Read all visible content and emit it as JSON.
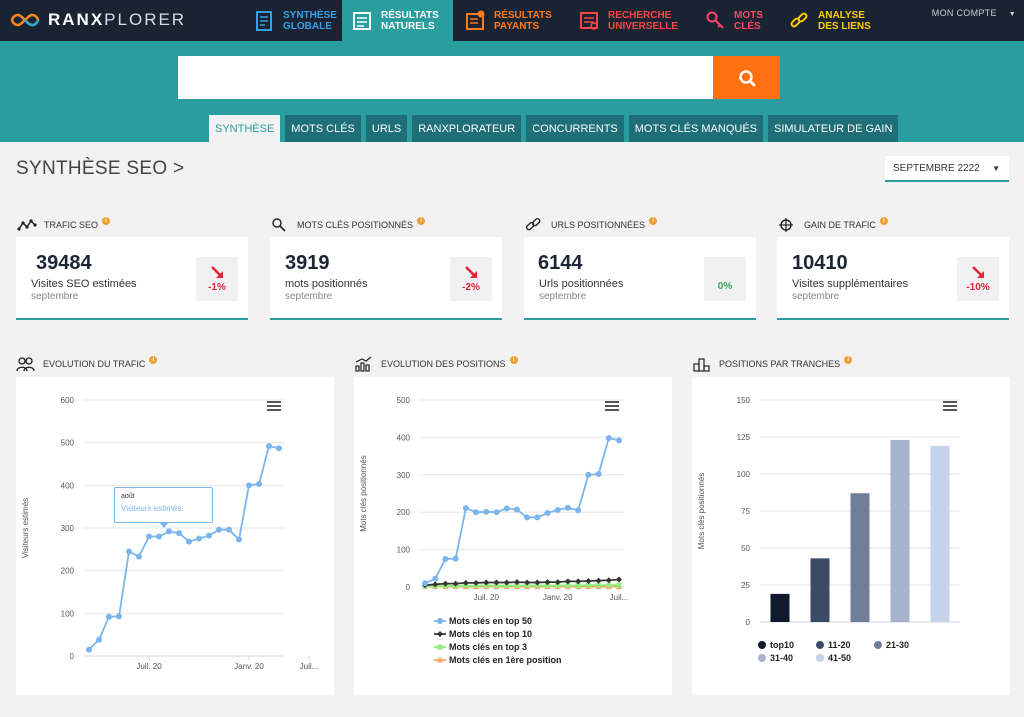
{
  "brand": {
    "name_bold": "RANX",
    "name_thin": "PLORER"
  },
  "nav": {
    "items": [
      {
        "label": "SYNTHÈSE\nGLOBALE",
        "color": "#35a0e8",
        "icon": "report-icon"
      },
      {
        "label": "RÉSULTATS\nNATURELS",
        "color": "#ffffff",
        "icon": "results-list-icon",
        "active": true
      },
      {
        "label": "RÉSULTATS\nPAYANTS",
        "color": "#ff7a1a",
        "icon": "paid-results-icon"
      },
      {
        "label": "RECHERCHE\nUNIVERSELLE",
        "color": "#ff4444",
        "icon": "universal-search-icon"
      },
      {
        "label": "MOTS\nCLÉS",
        "color": "#ff4466",
        "icon": "key-icon"
      },
      {
        "label": "ANALYSE\nDES LIENS",
        "color": "#ffcc00",
        "icon": "link-icon"
      }
    ],
    "account": "MON COMPTE"
  },
  "search": {
    "value": "",
    "placeholder": ""
  },
  "subtabs": [
    "SYNTHÈSE",
    "MOTS CLÉS",
    "URLS",
    "RANXPLORATEUR",
    "CONCURRENTS",
    "MOTS CLÉS MANQUÉS",
    "SIMULATEUR DE GAIN"
  ],
  "page": {
    "title": "SYNTHÈSE SEO >",
    "period": "SEPTEMBRE 2222"
  },
  "kpis": [
    {
      "label": "TRAFIC SEO",
      "value": "39484",
      "desc": "Visites SEO estimées",
      "sub": "septembre",
      "delta": "-1%",
      "trend": "down"
    },
    {
      "label": "MOTS CLÉS POSITIONNÉS",
      "value": "3919",
      "desc": "mots positionnés",
      "sub": "septembre",
      "delta": "-2%",
      "trend": "down"
    },
    {
      "label": "URLS POSITIONNÉES",
      "value": "6144",
      "desc": "Urls positionnées",
      "sub": "septembre",
      "delta": "0%",
      "trend": "flat"
    },
    {
      "label": "GAIN DE TRAFIC",
      "value": "10410",
      "desc": "Visites supplémentaires",
      "sub": "septembre",
      "delta": "-10%",
      "trend": "down"
    }
  ],
  "panels": {
    "traffic": {
      "label": "EVOLUTION DU TRAFIC"
    },
    "positions": {
      "label": "EVOLUTION DES POSITIONS"
    },
    "ranges": {
      "label": "POSITIONS PAR TRANCHES"
    }
  },
  "tooltip": {
    "title": "août",
    "series": "Visiteurs estimés:"
  },
  "colors": {
    "teal": "#2a9d9f",
    "navy": "#1a2332",
    "orange": "#ff7010",
    "series_blue": "#7cb5ec",
    "series_black": "#333333",
    "series_green": "#90ed7d",
    "series_orange": "#f7a35c"
  },
  "chart_data": [
    {
      "type": "line",
      "title": "",
      "xlabel": "",
      "ylabel": "Visiteurs estimés",
      "ylim": [
        0,
        600
      ],
      "yticks": [
        0,
        100,
        200,
        300,
        400,
        500,
        600
      ],
      "xticks": [
        "Juil. 20",
        "Janv. 20",
        "Juil..."
      ],
      "xtick_index": [
        6,
        16,
        22
      ],
      "series": [
        {
          "name": "Visiteurs estimés",
          "color": "#7cb5ec",
          "values": [
            15,
            38,
            92,
            93,
            245,
            233,
            280,
            280,
            292,
            288,
            268,
            275,
            282,
            296,
            296,
            273,
            400,
            403,
            492,
            487
          ]
        }
      ],
      "grid": true
    },
    {
      "type": "line",
      "title": "",
      "xlabel": "",
      "ylabel": "Mots clés positionnés",
      "ylim": [
        0,
        500
      ],
      "yticks": [
        0,
        100,
        200,
        300,
        400,
        500
      ],
      "xticks": [
        "Juil. 20",
        "Janv. 20",
        "Juil..."
      ],
      "xtick_index": [
        6,
        13,
        19
      ],
      "series": [
        {
          "name": "Mots clés en top 50",
          "color": "#7cb5ec",
          "marker": "circle",
          "values": [
            10,
            22,
            75,
            76,
            211,
            200,
            201,
            200,
            210,
            207,
            186,
            186,
            198,
            206,
            212,
            205,
            300,
            302,
            398,
            392
          ]
        },
        {
          "name": "Mots clés en top 10",
          "color": "#333333",
          "marker": "diamond",
          "values": [
            5,
            7,
            9,
            9,
            11,
            11,
            12,
            12,
            12,
            13,
            12,
            12,
            13,
            13,
            15,
            15,
            16,
            17,
            18,
            20
          ]
        },
        {
          "name": "Mots clés en top 3",
          "color": "#90ed7d",
          "marker": "square",
          "values": [
            2,
            3,
            3,
            3,
            4,
            4,
            4,
            4,
            4,
            4,
            4,
            4,
            4,
            4,
            4,
            4,
            5,
            5,
            5,
            5
          ]
        },
        {
          "name": "Mots clés en 1ère position",
          "color": "#f7a35c",
          "marker": "triangle",
          "values": [
            1,
            1,
            1,
            1,
            1,
            1,
            1,
            1,
            1,
            1,
            1,
            1,
            1,
            1,
            1,
            1,
            1,
            1,
            1,
            1
          ]
        }
      ],
      "legend": "bottom",
      "grid": true
    },
    {
      "type": "bar",
      "title": "",
      "xlabel": "",
      "ylabel": "Mots clés positionnés",
      "ylim": [
        0,
        150
      ],
      "yticks": [
        0,
        25,
        50,
        75,
        100,
        125,
        150
      ],
      "categories": [
        "top10",
        "11-20",
        "21-30",
        "31-40",
        "41-50"
      ],
      "values": [
        19,
        43,
        87,
        123,
        119
      ],
      "colors": [
        "#101a2e",
        "#3b4b67",
        "#6f7f9a",
        "#a6b3cb",
        "#c4d2ea"
      ],
      "legend": "bottom",
      "grid": true
    }
  ]
}
